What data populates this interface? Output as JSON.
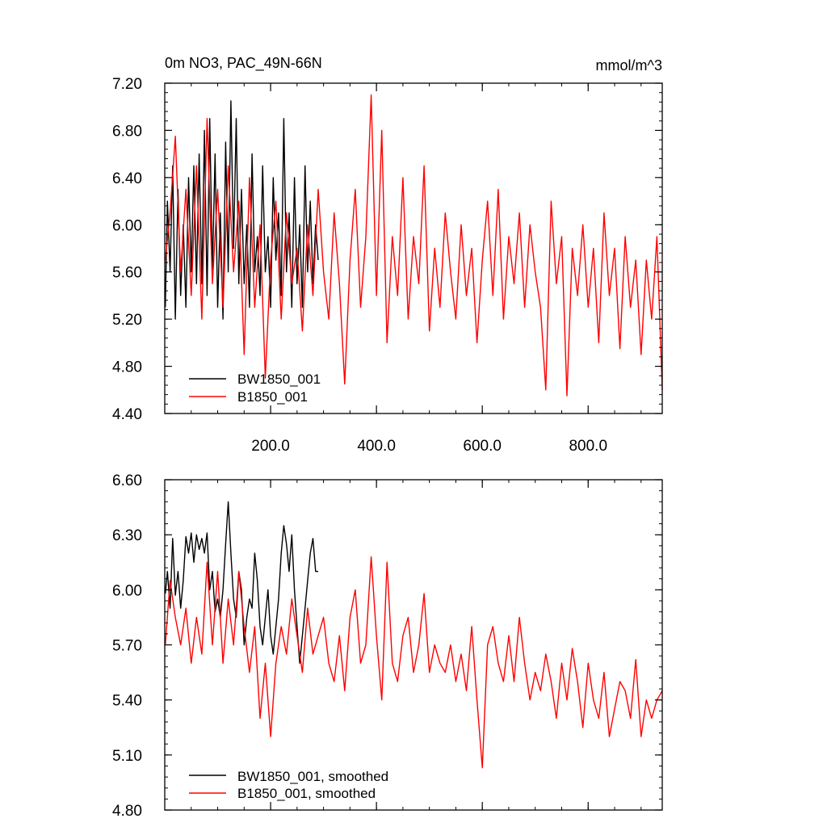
{
  "chart_data": [
    {
      "type": "line",
      "title": "0m NO3, PAC_49N-66N",
      "units": "mmol/m^3",
      "xlim": [
        0,
        940
      ],
      "ylim": [
        4.4,
        7.2
      ],
      "x_ticks": [
        200,
        400,
        600,
        800
      ],
      "x_tick_labels": [
        "200.0",
        "400.0",
        "600.0",
        "800.0"
      ],
      "y_ticks": [
        4.4,
        4.8,
        5.2,
        5.6,
        6.0,
        6.4,
        6.8,
        7.2
      ],
      "y_tick_labels": [
        "4.40",
        "4.80",
        "5.20",
        "5.60",
        "6.00",
        "6.40",
        "6.80",
        "7.20"
      ],
      "legend_position": "bottom-left",
      "series": [
        {
          "name": "BW1850_001",
          "color": "#000000",
          "x": [
            1,
            5,
            10,
            15,
            20,
            25,
            30,
            35,
            40,
            45,
            50,
            55,
            60,
            65,
            70,
            75,
            80,
            85,
            90,
            95,
            100,
            105,
            110,
            115,
            120,
            125,
            130,
            135,
            140,
            145,
            150,
            155,
            160,
            165,
            170,
            175,
            180,
            185,
            190,
            195,
            200,
            205,
            210,
            215,
            220,
            225,
            230,
            235,
            240,
            245,
            250,
            255,
            260,
            265,
            270,
            275,
            280,
            285,
            290
          ],
          "values": [
            5.3,
            6.2,
            5.6,
            6.5,
            5.2,
            6.3,
            5.4,
            6.0,
            5.3,
            6.4,
            5.6,
            6.5,
            5.5,
            6.6,
            5.5,
            6.8,
            5.4,
            6.9,
            5.6,
            6.6,
            5.3,
            6.1,
            5.2,
            6.7,
            5.6,
            7.05,
            5.8,
            6.9,
            5.5,
            6.3,
            5.5,
            6.0,
            5.3,
            6.6,
            5.6,
            5.9,
            5.4,
            6.5,
            5.6,
            5.9,
            5.3,
            6.4,
            5.7,
            6.1,
            5.4,
            6.9,
            5.6,
            6.1,
            5.3,
            6.4,
            5.5,
            6.0,
            5.3,
            6.5,
            5.6,
            6.2,
            5.5,
            6.0,
            5.7
          ]
        },
        {
          "name": "B1850_001",
          "color": "#ff0000",
          "x": [
            1,
            10,
            20,
            30,
            40,
            50,
            60,
            70,
            80,
            90,
            100,
            110,
            120,
            130,
            140,
            150,
            160,
            170,
            180,
            190,
            200,
            210,
            220,
            230,
            240,
            250,
            260,
            270,
            280,
            290,
            300,
            310,
            320,
            330,
            340,
            350,
            360,
            370,
            380,
            390,
            400,
            410,
            420,
            430,
            440,
            450,
            460,
            470,
            480,
            490,
            500,
            510,
            520,
            530,
            540,
            550,
            560,
            570,
            580,
            590,
            600,
            610,
            620,
            630,
            640,
            650,
            660,
            670,
            680,
            690,
            700,
            710,
            720,
            730,
            740,
            750,
            760,
            770,
            780,
            790,
            800,
            810,
            820,
            830,
            840,
            850,
            860,
            870,
            880,
            890,
            900,
            910,
            920,
            930,
            940
          ],
          "values": [
            5.7,
            6.1,
            6.75,
            5.6,
            6.3,
            5.4,
            6.5,
            5.2,
            6.9,
            5.5,
            6.3,
            5.3,
            6.5,
            5.6,
            6.2,
            4.9,
            6.4,
            5.3,
            6.0,
            4.7,
            5.7,
            6.2,
            5.2,
            6.1,
            5.5,
            5.8,
            5.1,
            6.0,
            5.4,
            6.3,
            5.6,
            5.2,
            6.1,
            5.5,
            4.65,
            5.7,
            6.3,
            5.3,
            5.9,
            7.1,
            5.4,
            6.8,
            5.0,
            5.9,
            5.4,
            6.4,
            5.2,
            5.9,
            5.5,
            6.5,
            5.1,
            5.8,
            5.3,
            6.1,
            5.6,
            5.2,
            6.0,
            5.4,
            5.8,
            5.0,
            5.7,
            6.2,
            5.4,
            6.3,
            5.2,
            5.9,
            5.5,
            6.1,
            5.3,
            6.0,
            5.6,
            5.3,
            4.6,
            6.2,
            5.5,
            5.9,
            4.55,
            5.8,
            5.4,
            6.0,
            5.3,
            5.8,
            5.0,
            6.1,
            5.4,
            5.8,
            4.95,
            5.9,
            5.3,
            5.7,
            4.9,
            5.7,
            5.2,
            5.9,
            4.6
          ]
        }
      ]
    },
    {
      "type": "line",
      "title": "",
      "xlim": [
        0,
        940
      ],
      "ylim": [
        4.8,
        6.6
      ],
      "x_ticks": [
        200,
        400,
        600,
        800
      ],
      "x_tick_labels": [],
      "y_ticks": [
        4.8,
        5.1,
        5.4,
        5.7,
        6.0,
        6.3,
        6.6
      ],
      "y_tick_labels": [
        "4.80",
        "5.10",
        "5.40",
        "5.70",
        "6.00",
        "6.30",
        "6.60"
      ],
      "legend_position": "bottom-left",
      "series": [
        {
          "name": "BW1850_001, smoothed",
          "color": "#000000",
          "x": [
            1,
            5,
            10,
            15,
            20,
            25,
            30,
            35,
            40,
            45,
            50,
            55,
            60,
            65,
            70,
            75,
            80,
            85,
            90,
            95,
            100,
            105,
            110,
            115,
            120,
            125,
            130,
            135,
            140,
            145,
            150,
            155,
            160,
            165,
            170,
            175,
            180,
            185,
            190,
            195,
            200,
            205,
            210,
            215,
            220,
            225,
            230,
            235,
            240,
            245,
            250,
            255,
            260,
            265,
            270,
            275,
            280,
            285,
            290
          ],
          "values": [
            5.98,
            6.1,
            5.9,
            6.28,
            5.97,
            6.1,
            5.9,
            6.05,
            6.29,
            6.2,
            6.31,
            6.15,
            6.3,
            6.22,
            6.28,
            6.2,
            6.31,
            6.0,
            6.1,
            5.88,
            5.95,
            5.85,
            6.0,
            6.25,
            6.48,
            6.2,
            5.95,
            5.85,
            6.1,
            6.0,
            5.7,
            5.85,
            5.95,
            5.9,
            6.2,
            6.05,
            5.8,
            5.7,
            5.85,
            6.0,
            5.75,
            5.65,
            5.8,
            5.95,
            6.2,
            6.35,
            6.25,
            6.1,
            6.3,
            6.0,
            5.8,
            5.6,
            5.75,
            5.9,
            6.05,
            6.2,
            6.28,
            6.1,
            6.1
          ]
        },
        {
          "name": "B1850_001, smoothed",
          "color": "#ff0000",
          "x": [
            1,
            10,
            20,
            30,
            40,
            50,
            60,
            70,
            80,
            90,
            100,
            110,
            120,
            130,
            140,
            150,
            160,
            170,
            180,
            190,
            200,
            210,
            220,
            230,
            240,
            250,
            260,
            270,
            280,
            290,
            300,
            310,
            320,
            330,
            340,
            350,
            360,
            370,
            380,
            390,
            400,
            410,
            420,
            430,
            440,
            450,
            460,
            470,
            480,
            490,
            500,
            510,
            520,
            530,
            540,
            550,
            560,
            570,
            580,
            590,
            600,
            610,
            620,
            630,
            640,
            650,
            660,
            670,
            680,
            690,
            700,
            710,
            720,
            730,
            740,
            750,
            760,
            770,
            780,
            790,
            800,
            810,
            820,
            830,
            840,
            850,
            860,
            870,
            880,
            890,
            900,
            910,
            920,
            930,
            940
          ],
          "values": [
            5.7,
            6.05,
            5.85,
            5.7,
            5.9,
            5.6,
            5.85,
            5.65,
            6.15,
            5.7,
            6.1,
            5.6,
            5.95,
            5.7,
            6.1,
            5.8,
            5.55,
            5.8,
            5.3,
            5.6,
            5.2,
            5.6,
            5.8,
            5.65,
            5.95,
            5.75,
            5.55,
            5.9,
            5.65,
            5.75,
            5.85,
            5.6,
            5.5,
            5.75,
            5.45,
            5.85,
            6.0,
            5.6,
            5.7,
            6.18,
            5.75,
            5.4,
            6.15,
            5.6,
            5.5,
            5.75,
            5.85,
            5.55,
            5.7,
            5.98,
            5.55,
            5.7,
            5.6,
            5.55,
            5.7,
            5.5,
            5.65,
            5.45,
            5.8,
            5.4,
            5.03,
            5.7,
            5.8,
            5.6,
            5.5,
            5.75,
            5.5,
            5.85,
            5.6,
            5.4,
            5.55,
            5.45,
            5.65,
            5.5,
            5.3,
            5.6,
            5.4,
            5.68,
            5.5,
            5.25,
            5.6,
            5.4,
            5.3,
            5.55,
            5.2,
            5.35,
            5.5,
            5.45,
            5.3,
            5.62,
            5.2,
            5.4,
            5.3,
            5.4,
            5.45
          ]
        }
      ]
    }
  ]
}
